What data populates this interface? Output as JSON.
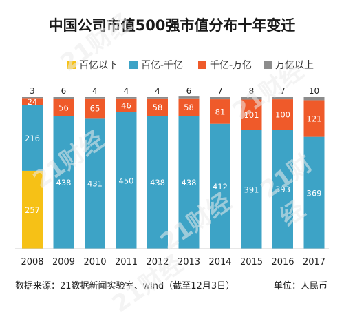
{
  "chart_data": {
    "type": "bar",
    "title": "中国公司市值500强市值分布十年变迁",
    "categories": [
      "2008",
      "2009",
      "2010",
      "2011",
      "2012",
      "2013",
      "2014",
      "2015",
      "2016",
      "2017"
    ],
    "series": [
      {
        "name": "百亿以下",
        "color": "#f6c116",
        "values": [
          257,
          0,
          0,
          0,
          0,
          0,
          0,
          0,
          0,
          0
        ]
      },
      {
        "name": "百亿-千亿",
        "color": "#3da3c6",
        "values": [
          216,
          438,
          431,
          450,
          438,
          438,
          412,
          391,
          393,
          369
        ]
      },
      {
        "name": "千亿-万亿",
        "color": "#ef5a2a",
        "values": [
          24,
          56,
          65,
          46,
          58,
          58,
          81,
          101,
          100,
          121
        ]
      },
      {
        "name": "万亿以上",
        "color": "#8c8c8c",
        "values": [
          3,
          6,
          4,
          4,
          4,
          6,
          7,
          8,
          7,
          10
        ]
      }
    ],
    "top_labels": [
      "3",
      "6",
      "4",
      "4",
      "4",
      "6",
      "7",
      "8",
      "7",
      "10"
    ],
    "ylim": [
      0,
      500
    ],
    "grid": false,
    "legend_position": "top"
  },
  "source": "数据来源：21数据新闻实验室、wind（截至12月3日）",
  "unit": "单位：人民币",
  "watermark": "21财经"
}
